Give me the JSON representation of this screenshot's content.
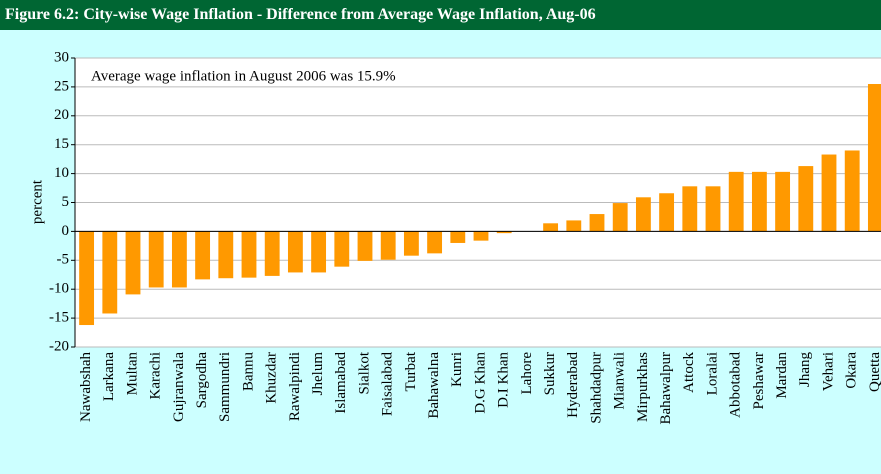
{
  "chart_data": {
    "type": "bar",
    "title": "Figure 6.2: City-wise Wage Inflation - Difference from Average Wage Inflation, Aug-06",
    "annotation": "Average wage inflation in August 2006 was 15.9%",
    "y_label": "percent",
    "categories": [
      "Nawabshah",
      "Larkana",
      "Multan",
      "Karachi",
      "Gujranwala",
      "Sargodha",
      "Sammundri",
      "Bannu",
      "Khuzdar",
      "Rawalpindi",
      "Jhelum",
      "Islamabad",
      "Sialkot",
      "Faisalabad",
      "Turbat",
      "Bahawalna",
      "Kunri",
      "D.G Khan",
      "D.I Khan",
      "Lahore",
      "Sukkur",
      "Hyderabad",
      "Shahdadpur",
      "Mianwali",
      "Mirpurkhas",
      "Bahawalpur",
      "Attock",
      "Loralai",
      "Abbotabad",
      "Peshawar",
      "Mardan",
      "Jhang",
      "Vehari",
      "Okara",
      "Quetta"
    ],
    "values": [
      -16.2,
      -14.2,
      -10.9,
      -9.7,
      -9.7,
      -8.3,
      -8.1,
      -8.0,
      -7.7,
      -7.1,
      -7.1,
      -6.1,
      -5.1,
      -4.9,
      -4.2,
      -3.8,
      -2.0,
      -1.6,
      -0.3,
      0,
      1.4,
      1.9,
      3.0,
      4.9,
      5.9,
      6.6,
      7.8,
      7.8,
      10.3,
      10.3,
      10.3,
      11.3,
      13.3,
      14.0,
      25.5
    ],
    "color": "#ff9900",
    "ylim": [
      -20,
      30
    ],
    "yticks": [
      -20,
      -15,
      -10,
      -5,
      0,
      5,
      10,
      15,
      20,
      25,
      30
    ],
    "grid": true
  }
}
